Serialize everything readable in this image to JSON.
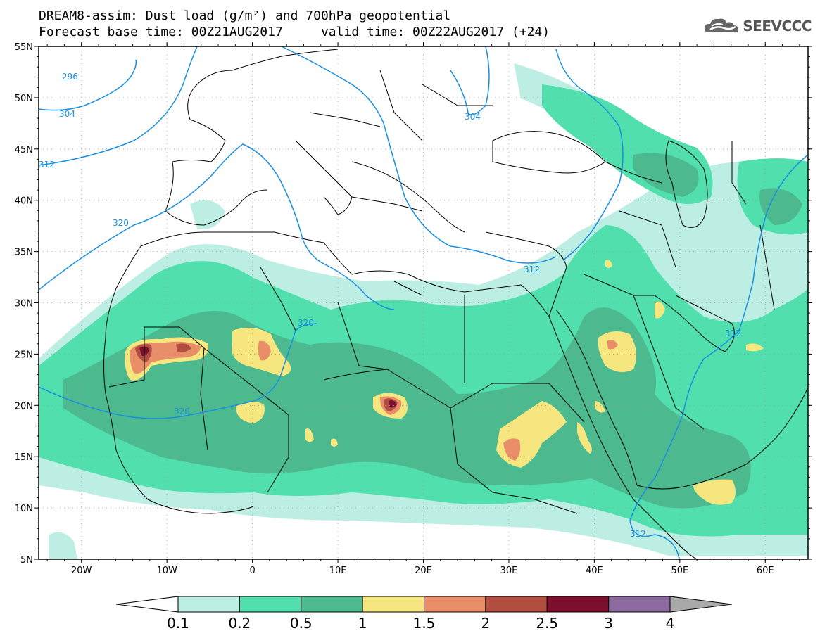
{
  "title_line1": "DREAM8-assim: Dust load (g/m²) and 700hPa geopotential",
  "title_line2": "Forecast base time: 00Z21AUG2017     valid time: 00Z22AUG2017 (+24)",
  "logo": {
    "icon": "cloud-icon",
    "text": "SEEVCCC"
  },
  "map": {
    "lon_range": [
      -25,
      65
    ],
    "lat_range": [
      5,
      55
    ],
    "lat_ticks": [
      "55N",
      "50N",
      "45N",
      "40N",
      "35N",
      "30N",
      "25N",
      "20N",
      "15N",
      "10N",
      "5N"
    ],
    "lon_ticks": [
      "20W",
      "10W",
      "0",
      "10E",
      "20E",
      "30E",
      "40E",
      "50E",
      "60E"
    ],
    "contour_color": "#1a8fe0",
    "contour_labels": [
      "296",
      "304",
      "304",
      "312",
      "320",
      "320",
      "312",
      "320",
      "312",
      "312"
    ]
  },
  "colorbar": {
    "colors": [
      "#ffffff",
      "#bdeee3",
      "#52dfae",
      "#4cb98f",
      "#f5e680",
      "#e98e69",
      "#b14e3f",
      "#7b0f2d",
      "#8c6a9f",
      "#a9a9a9"
    ],
    "labels": [
      "0.1",
      "0.2",
      "0.5",
      "1",
      "1.5",
      "2",
      "2.5",
      "3",
      "4"
    ]
  }
}
